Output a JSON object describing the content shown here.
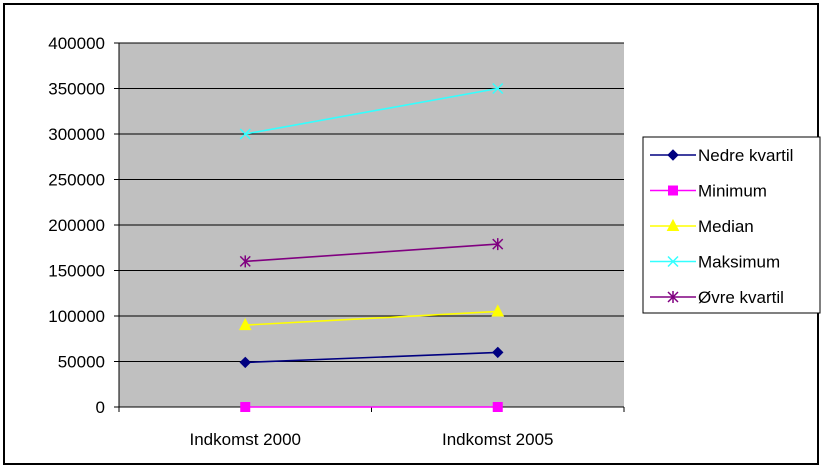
{
  "chart_data": {
    "type": "line",
    "categories": [
      "Indkomst 2000",
      "Indkomst 2005"
    ],
    "ylim": [
      0,
      400000
    ],
    "yticks": [
      0,
      50000,
      100000,
      150000,
      200000,
      250000,
      300000,
      350000,
      400000
    ],
    "grid": true,
    "legend_position": "right",
    "plot_background": "#c0c0c0",
    "series": [
      {
        "name": "Nedre kvartil",
        "values": [
          49000,
          60000
        ],
        "color": "#000080",
        "marker": "diamond"
      },
      {
        "name": "Minimum",
        "values": [
          0,
          0
        ],
        "color": "#ff00ff",
        "marker": "square"
      },
      {
        "name": "Median",
        "values": [
          90000,
          105000
        ],
        "color": "#ffff00",
        "marker": "triangle"
      },
      {
        "name": "Maksimum",
        "values": [
          300000,
          350000
        ],
        "color": "#33ffff",
        "marker": "x"
      },
      {
        "name": "Øvre kvartil",
        "values": [
          160000,
          179000
        ],
        "color": "#800080",
        "marker": "star"
      }
    ]
  }
}
